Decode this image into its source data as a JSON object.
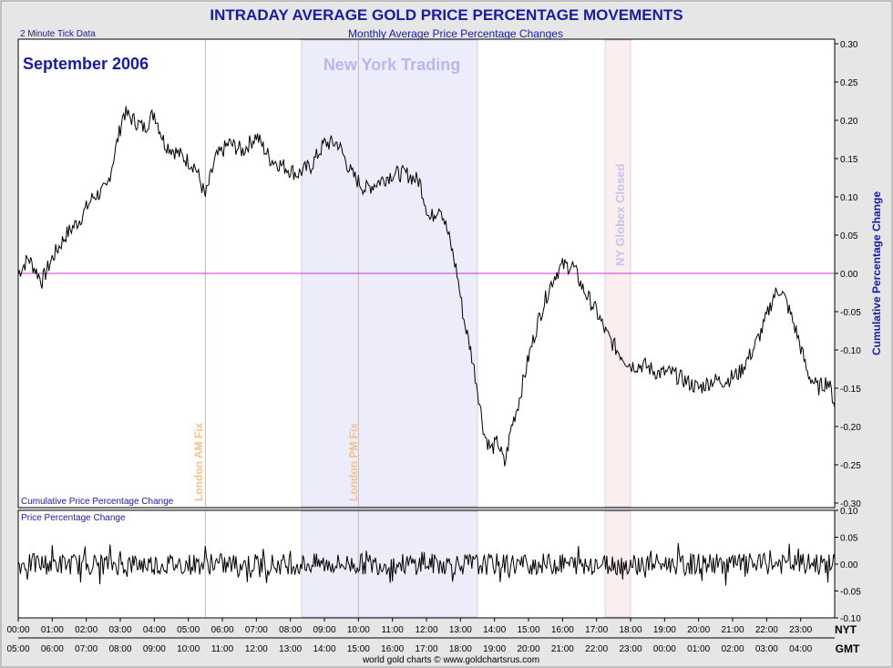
{
  "chart_data": {
    "type": "line",
    "title": "INTRADAY AVERAGE GOLD PRICE PERCENTAGE MOVEMENTS",
    "subtitle": "Monthly Average Price Percentage Changes",
    "tick_note": "2 Minute Tick Data",
    "period_label": "September 2006",
    "footer": "world gold charts © www.goldchartsrus.com",
    "colors": {
      "title": "#1a1aa8",
      "zero_line": "#cc33cc",
      "fix_line": "#f2b070",
      "ny_band": "#ececfb",
      "globex_band": "#fbeeee",
      "line": "#000000"
    },
    "annotations": {
      "ny_trading": "New York Trading",
      "london_am": "London AM Fix",
      "london_pm": "London PM Fix",
      "globex_closed": "NY Globex Closed"
    },
    "top_panel": {
      "ylabel": "Cumulative Percentage Change",
      "caption": "Cumulative Price Percentage Change",
      "ylim": [
        -0.3,
        0.3
      ],
      "yticks": [
        "0.30",
        "0.25",
        "0.20",
        "0.15",
        "0.10",
        "0.05",
        "0.00",
        "-0.05",
        "-0.10",
        "-0.15",
        "-0.20",
        "-0.25",
        "-0.30"
      ],
      "series_points": [
        [
          0,
          0.0
        ],
        [
          0.3,
          0.02
        ],
        [
          0.7,
          -0.01
        ],
        [
          1,
          0.02
        ],
        [
          1.4,
          0.05
        ],
        [
          1.8,
          0.07
        ],
        [
          2.2,
          0.1
        ],
        [
          2.6,
          0.11
        ],
        [
          2.9,
          0.17
        ],
        [
          3.1,
          0.21
        ],
        [
          3.4,
          0.2
        ],
        [
          3.7,
          0.19
        ],
        [
          4.0,
          0.21
        ],
        [
          4.3,
          0.17
        ],
        [
          4.6,
          0.16
        ],
        [
          4.9,
          0.15
        ],
        [
          5.2,
          0.14
        ],
        [
          5.5,
          0.1
        ],
        [
          5.8,
          0.15
        ],
        [
          6.2,
          0.17
        ],
        [
          6.6,
          0.16
        ],
        [
          7.0,
          0.18
        ],
        [
          7.4,
          0.15
        ],
        [
          7.8,
          0.14
        ],
        [
          8.2,
          0.13
        ],
        [
          8.6,
          0.14
        ],
        [
          9.0,
          0.17
        ],
        [
          9.4,
          0.17
        ],
        [
          9.8,
          0.13
        ],
        [
          10.2,
          0.11
        ],
        [
          10.6,
          0.12
        ],
        [
          11.0,
          0.13
        ],
        [
          11.4,
          0.13
        ],
        [
          11.8,
          0.12
        ],
        [
          12.1,
          0.07
        ],
        [
          12.4,
          0.09
        ],
        [
          12.7,
          0.04
        ],
        [
          12.9,
          0.0
        ],
        [
          13.1,
          -0.06
        ],
        [
          13.3,
          -0.1
        ],
        [
          13.5,
          -0.15
        ],
        [
          13.7,
          -0.21
        ],
        [
          13.9,
          -0.23
        ],
        [
          14.1,
          -0.22
        ],
        [
          14.3,
          -0.25
        ],
        [
          14.5,
          -0.2
        ],
        [
          14.7,
          -0.17
        ],
        [
          15.0,
          -0.11
        ],
        [
          15.3,
          -0.06
        ],
        [
          15.6,
          -0.02
        ],
        [
          15.8,
          0.0
        ],
        [
          16.0,
          0.01
        ],
        [
          16.3,
          0.01
        ],
        [
          16.6,
          -0.02
        ],
        [
          17.0,
          -0.05
        ],
        [
          17.3,
          -0.08
        ],
        [
          17.6,
          -0.1
        ],
        [
          18.0,
          -0.12
        ],
        [
          18.4,
          -0.12
        ],
        [
          18.8,
          -0.13
        ],
        [
          19.2,
          -0.13
        ],
        [
          19.6,
          -0.14
        ],
        [
          20.0,
          -0.15
        ],
        [
          20.4,
          -0.14
        ],
        [
          20.8,
          -0.14
        ],
        [
          21.2,
          -0.13
        ],
        [
          21.6,
          -0.1
        ],
        [
          21.9,
          -0.07
        ],
        [
          22.2,
          -0.03
        ],
        [
          22.4,
          -0.02
        ],
        [
          22.6,
          -0.04
        ],
        [
          22.9,
          -0.08
        ],
        [
          23.2,
          -0.13
        ],
        [
          23.5,
          -0.15
        ],
        [
          23.8,
          -0.14
        ],
        [
          24.0,
          -0.17
        ]
      ]
    },
    "bottom_panel": {
      "caption": "Price Percentage Change",
      "ylim": [
        -0.1,
        0.1
      ],
      "yticks": [
        "0.10",
        "0.05",
        "0.00",
        "-0.05",
        "-0.10"
      ],
      "noise_amplitude": 0.02
    },
    "x_axis": {
      "nyt_label": "NYT",
      "gmt_label": "GMT",
      "nyt_ticks": [
        "00:00",
        "01:00",
        "02:00",
        "03:00",
        "04:00",
        "05:00",
        "06:00",
        "07:00",
        "08:00",
        "09:00",
        "10:00",
        "11:00",
        "12:00",
        "13:00",
        "14:00",
        "15:00",
        "16:00",
        "17:00",
        "18:00",
        "19:00",
        "20:00",
        "21:00",
        "22:00",
        "23:00"
      ],
      "gmt_ticks": [
        "05:00",
        "06:00",
        "07:00",
        "08:00",
        "09:00",
        "10:00",
        "11:00",
        "12:00",
        "13:00",
        "14:00",
        "15:00",
        "16:00",
        "17:00",
        "18:00",
        "19:00",
        "20:00",
        "21:00",
        "22:00",
        "23:00",
        "00:00",
        "01:00",
        "02:00",
        "03:00",
        "04:00"
      ]
    },
    "events": {
      "london_am_hour": 5.5,
      "london_pm_hour": 10.0,
      "ny_start_hour": 8.33,
      "ny_end_hour": 13.5,
      "globex_start_hour": 17.25,
      "globex_end_hour": 18.0
    }
  }
}
